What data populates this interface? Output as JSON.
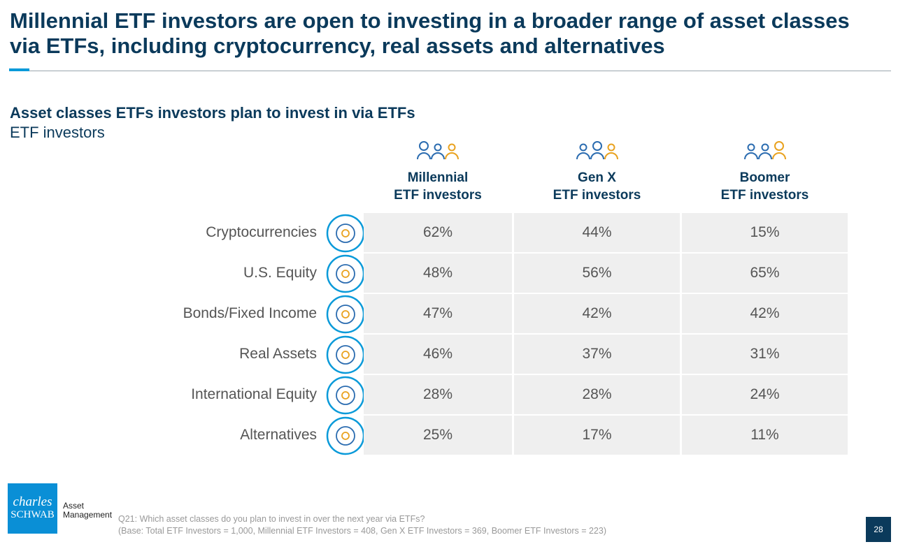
{
  "header": {
    "title": "Millennial ETF investors are open to investing in a broader range of asset classes via ETFs, including cryptocurrency, real assets and alternatives"
  },
  "section": {
    "title": "Asset classes ETFs investors plan to invest in via ETFs",
    "subtitle": "ETF investors"
  },
  "table": {
    "columns": [
      [
        "Millennial",
        "ETF investors"
      ],
      [
        "Gen X",
        "ETF investors"
      ],
      [
        "Boomer",
        "ETF investors"
      ]
    ],
    "rows": [
      [
        "Cryptocurrencies",
        "62%",
        "44%",
        "15%"
      ],
      [
        "U.S. Equity",
        "48%",
        "56%",
        "65%"
      ],
      [
        "Bonds/Fixed Income",
        "47%",
        "42%",
        "42%"
      ],
      [
        "Real Assets",
        "46%",
        "37%",
        "31%"
      ],
      [
        "International Equity",
        "28%",
        "28%",
        "24%"
      ],
      [
        "Alternatives",
        "25%",
        "17%",
        "11%"
      ]
    ]
  },
  "logo": {
    "brand": [
      "charles",
      "SCHWAB"
    ],
    "division": [
      "Asset",
      "Management"
    ]
  },
  "footnote": [
    "Q21: Which asset classes do you plan to invest in over the next year via ETFs?",
    "(Base: Total ETF Investors = 1,000, Millennial ETF Investors = 408, Gen X ETF Investors = 369, Boomer ETF Investors = 223)"
  ],
  "page_number": "28"
}
